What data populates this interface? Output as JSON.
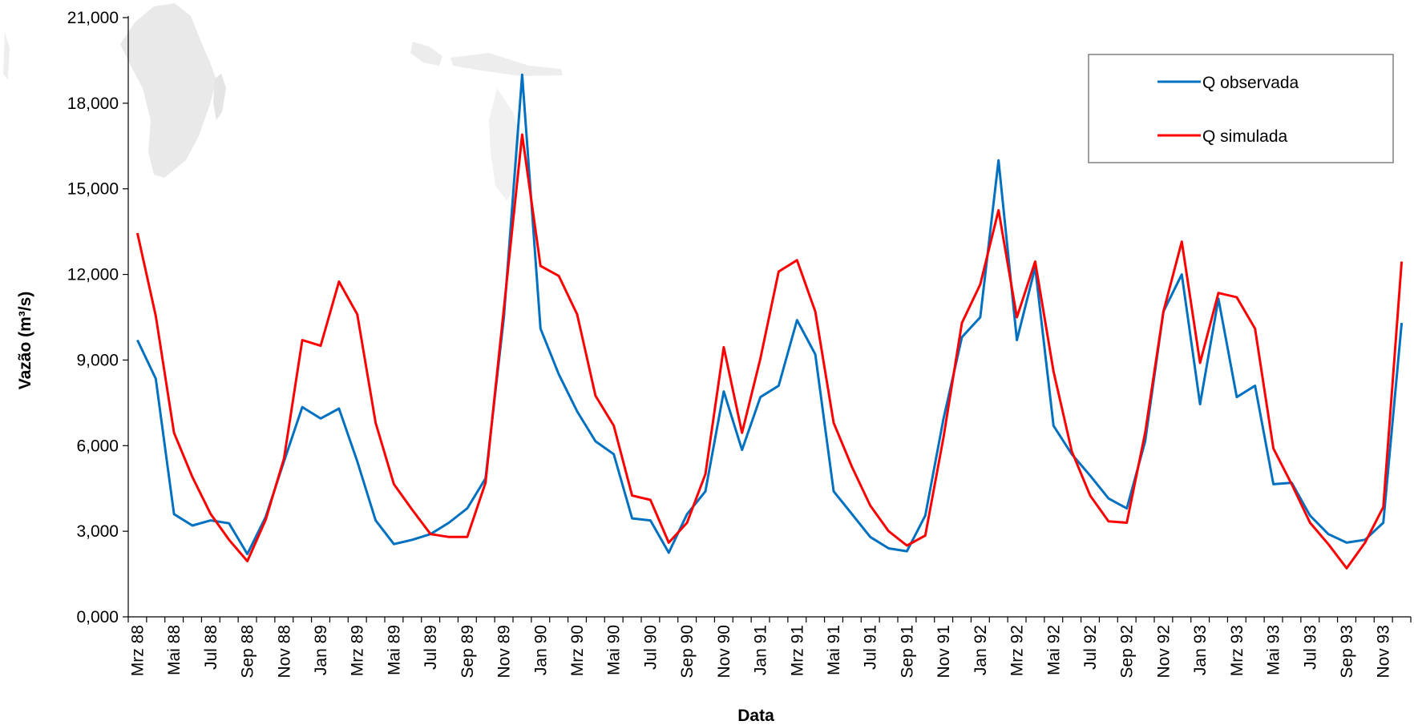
{
  "chart_data": {
    "type": "line",
    "xlabel": "Data",
    "ylabel": "Vazão (m³/s)",
    "ylim": [
      0,
      21000
    ],
    "yticks": [
      "0,000",
      "3,000",
      "6,000",
      "9,000",
      "12,000",
      "15,000",
      "18,000",
      "21,000"
    ],
    "yticks_values": [
      0,
      3000,
      6000,
      9000,
      12000,
      15000,
      18000,
      21000
    ],
    "x": [
      "Mrz 88",
      "Apr 88",
      "Mai 88",
      "Jun 88",
      "Jul 88",
      "Aug 88",
      "Sep 88",
      "Okt 88",
      "Nov 88",
      "Dez 88",
      "Jan 89",
      "Feb 89",
      "Mrz 89",
      "Apr 89",
      "Mai 89",
      "Jun 89",
      "Jul 89",
      "Aug 89",
      "Sep 89",
      "Okt 89",
      "Nov 89",
      "Dez 89",
      "Jan 90",
      "Feb 90",
      "Mrz 90",
      "Apr 90",
      "Mai 90",
      "Jun 90",
      "Jul 90",
      "Aug 90",
      "Sep 90",
      "Okt 90",
      "Nov 90",
      "Dez 90",
      "Jan 91",
      "Feb 91",
      "Mrz 91",
      "Apr 91",
      "Mai 91",
      "Jun 91",
      "Jul 91",
      "Aug 91",
      "Sep 91",
      "Okt 91",
      "Nov 91",
      "Dez 91",
      "Jan 92",
      "Feb 92",
      "Mrz 92",
      "Apr 92",
      "Mai 92",
      "Jun 92",
      "Jul 92",
      "Aug 92",
      "Sep 92",
      "Okt 92",
      "Nov 92",
      "Dez 92",
      "Jan 93",
      "Feb 93",
      "Mrz 93",
      "Apr 93",
      "Mai 93",
      "Jun 93",
      "Jul 93",
      "Aug 93",
      "Sep 93",
      "Okt 93",
      "Nov 93",
      "Dez 93"
    ],
    "xtick_labels": [
      "Mrz 88",
      "Mai 88",
      "Jul 88",
      "Sep 88",
      "Nov 88",
      "Jan 89",
      "Mrz 89",
      "Mai 89",
      "Jul 89",
      "Sep 89",
      "Nov 89",
      "Jan 90",
      "Mrz 90",
      "Mai 90",
      "Jul 90",
      "Sep 90",
      "Nov 90",
      "Jan 91",
      "Mrz 91",
      "Mai 91",
      "Jul 91",
      "Sep 91",
      "Nov 91",
      "Jan 92",
      "Mrz 92",
      "Mai 92",
      "Jul 92",
      "Sep 92",
      "Nov 92",
      "Jan 93",
      "Mrz 93",
      "Mai 93",
      "Jul 93",
      "Sep 93",
      "Nov 93"
    ],
    "legend_position": "top-right",
    "grid": false,
    "series": [
      {
        "name": "Q observada",
        "color": "#0070c0",
        "values": [
          9700,
          8350,
          3600,
          3200,
          3380,
          3280,
          2200,
          3500,
          5450,
          7350,
          6950,
          7300,
          5450,
          3380,
          2550,
          2700,
          2900,
          3300,
          3800,
          4850,
          10500,
          19000,
          10100,
          8500,
          7200,
          6150,
          5700,
          3450,
          3380,
          2250,
          3600,
          4400,
          7900,
          5850,
          7700,
          8100,
          10400,
          9200,
          4400,
          3600,
          2800,
          2400,
          2300,
          3550,
          6950,
          9800,
          10500,
          16000,
          9700,
          12250,
          6700,
          5700,
          4950,
          4150,
          3800,
          6150,
          10700,
          12000,
          7450,
          11150,
          7700,
          8100,
          4650,
          4700,
          3550,
          2900,
          2600,
          2700,
          3300,
          10300
        ]
      },
      {
        "name": "Q simulada",
        "color": "#ff0000",
        "values": [
          13450,
          10550,
          6450,
          4900,
          3600,
          2700,
          1950,
          3400,
          5550,
          9700,
          9500,
          11750,
          10600,
          6800,
          4650,
          3750,
          2900,
          2800,
          2800,
          4700,
          10800,
          16900,
          12300,
          11950,
          10600,
          7750,
          6700,
          4250,
          4100,
          2600,
          3300,
          5000,
          9450,
          6450,
          9050,
          12100,
          12500,
          10700,
          6800,
          5250,
          3900,
          3000,
          2500,
          2850,
          6300,
          10300,
          11650,
          14250,
          10500,
          12450,
          8600,
          5800,
          4250,
          3350,
          3300,
          6450,
          10700,
          13150,
          8900,
          11350,
          11200,
          10100,
          5900,
          4650,
          3300,
          2550,
          1700,
          2600,
          3850,
          12450
        ]
      }
    ]
  }
}
